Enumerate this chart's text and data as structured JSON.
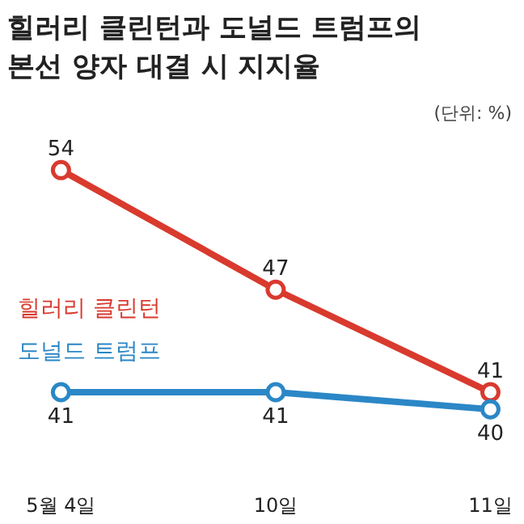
{
  "chart_data": {
    "type": "line",
    "title": "힐러리 클린턴과 도널드 트럼프의 본선 양자 대결 시 지지율",
    "subtitle": "(단위: %)",
    "categories": [
      "5월 4일",
      "10일",
      "11일"
    ],
    "series": [
      {
        "name": "힐러리 클린턴",
        "color": "#d93a2e",
        "values": [
          54,
          47,
          41
        ]
      },
      {
        "name": "도널드 트럼프",
        "color": "#2b87c6",
        "values": [
          41,
          41,
          40
        ]
      }
    ],
    "data_labels": true,
    "marker": "circle",
    "line_style": "solid",
    "grid": false,
    "legend": false
  }
}
